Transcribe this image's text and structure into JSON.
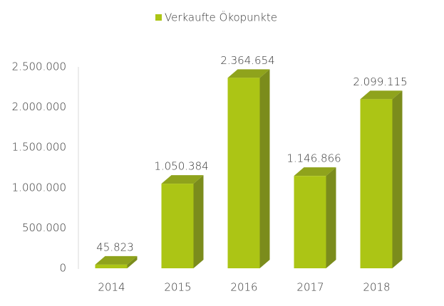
{
  "chart_data": {
    "type": "bar",
    "categories": [
      "2014",
      "2015",
      "2016",
      "2017",
      "2018"
    ],
    "series": [
      {
        "name": "Verkaufte Ökopunkte",
        "color": "#acc515",
        "values": [
          45823,
          1050384,
          2364654,
          1146866,
          2099115
        ],
        "value_labels": [
          "45.823",
          "1.050.384",
          "2.364.654",
          "1.146.866",
          "2.099.115"
        ]
      }
    ],
    "ylim": [
      0,
      2500000
    ],
    "yticks": [
      0,
      {
        "value": 500000,
        "label": "500.000"
      },
      {
        "value": 1000000,
        "label": "1.000.000"
      },
      {
        "value": 1500000,
        "label": "1.500.000"
      },
      {
        "value": 2000000,
        "label": "2.000.000"
      },
      {
        "value": 2500000,
        "label": "2.500.000"
      }
    ],
    "legend": "top"
  }
}
